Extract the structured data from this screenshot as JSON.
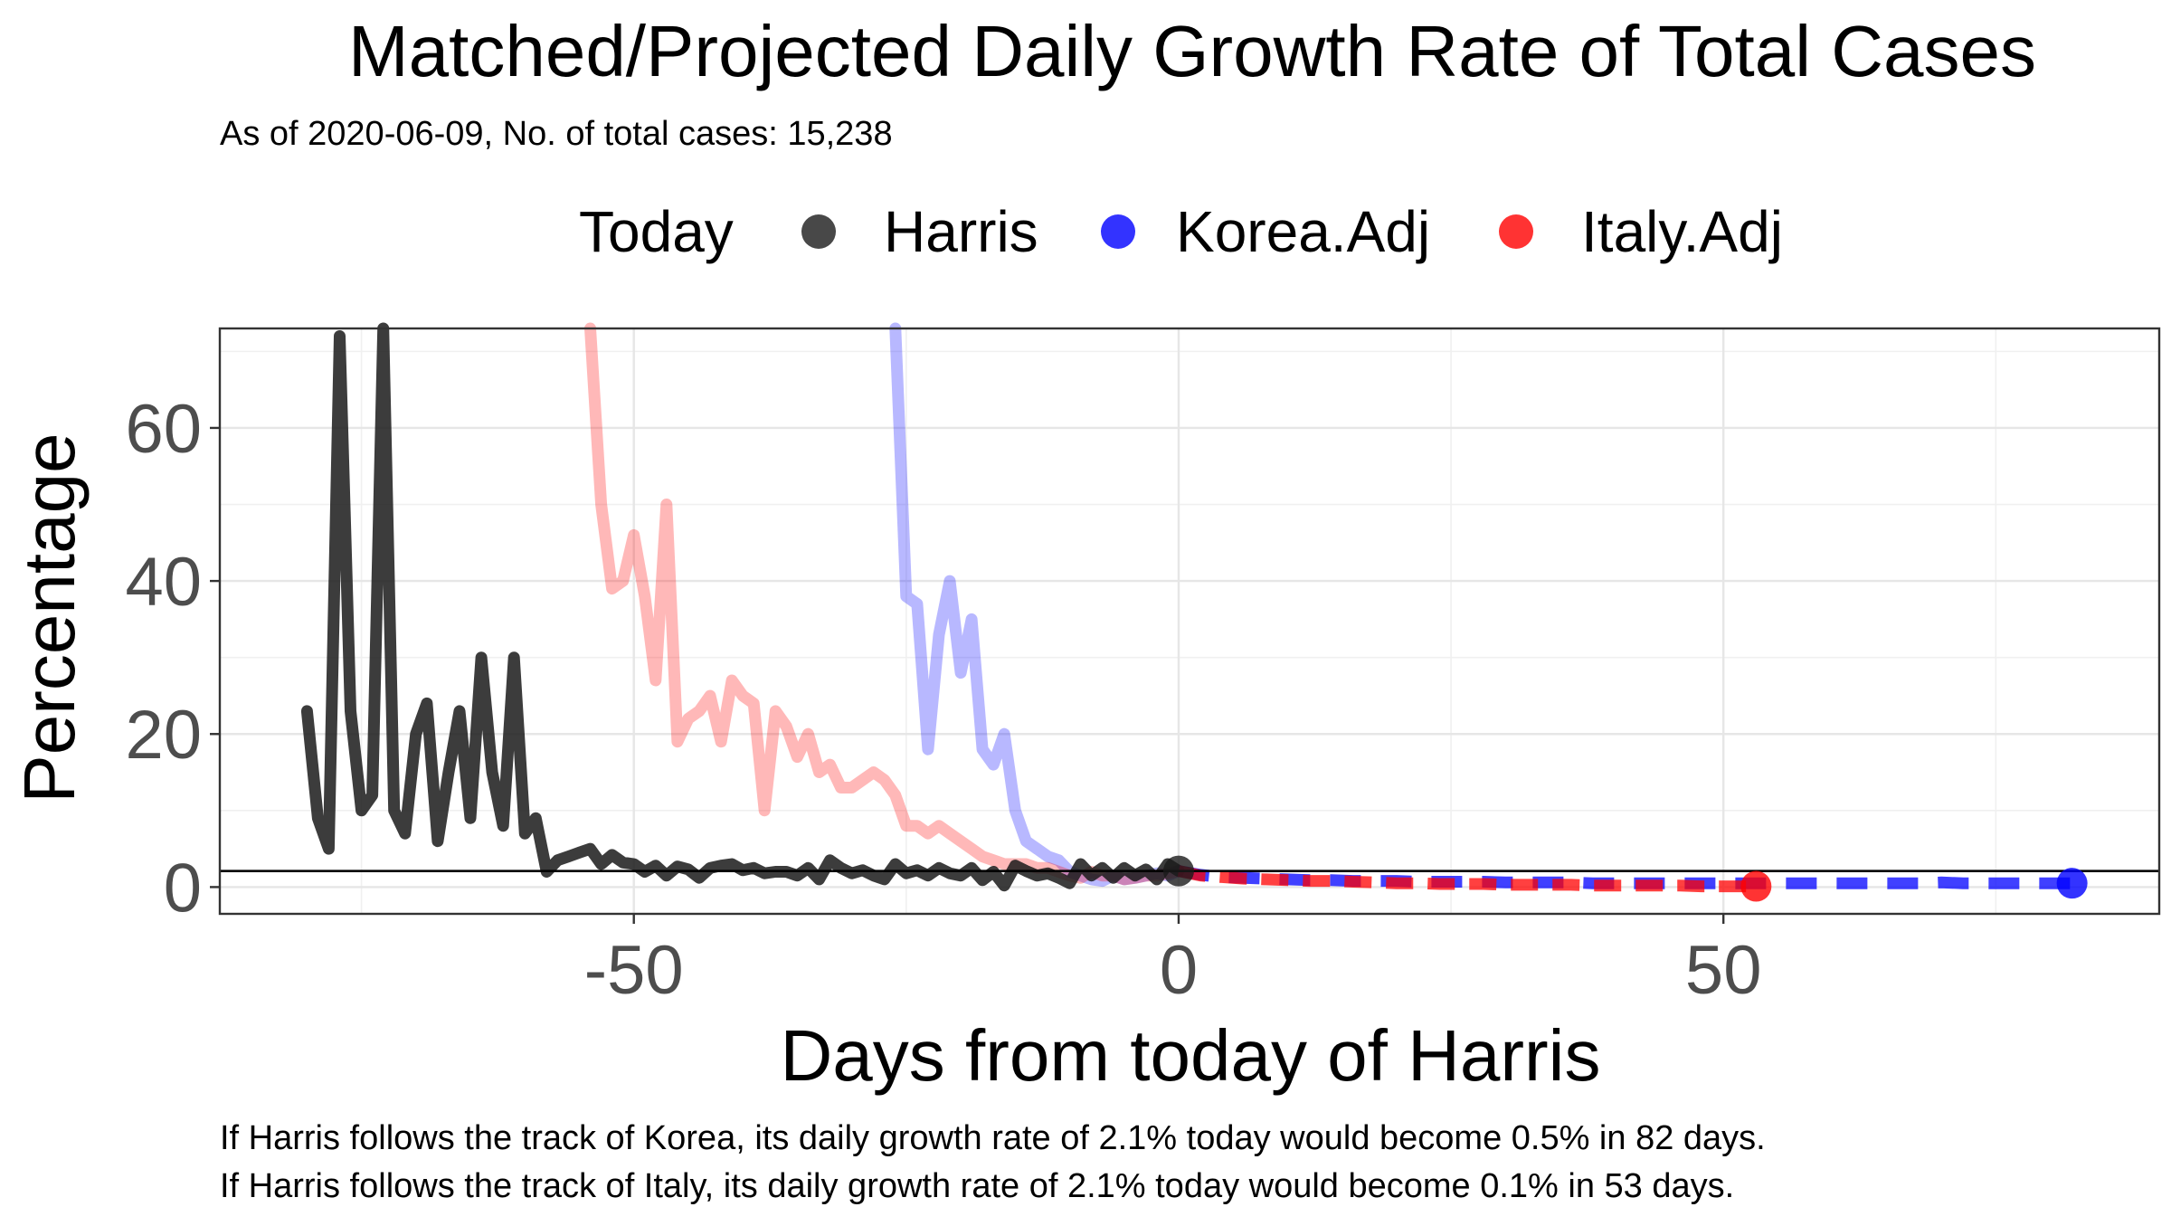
{
  "chart_data": {
    "type": "line",
    "title": "Matched/Projected Daily Growth Rate of Total Cases",
    "subtitle": "As of 2020-06-09, No. of total cases: 15,238",
    "xlabel": "Days from today of Harris",
    "ylabel": "Percentage",
    "xlim": [
      -88,
      90
    ],
    "ylim": [
      -3.5,
      73
    ],
    "x_ticks": [
      -50,
      0,
      50
    ],
    "x_tick_labels": [
      "-50",
      "0",
      "50"
    ],
    "y_ticks": [
      0,
      20,
      40,
      60
    ],
    "y_tick_labels": [
      "0",
      "20",
      "40",
      "60"
    ],
    "grid": true,
    "legend": {
      "position": "top",
      "title": "Today",
      "entries": [
        {
          "label": "Harris",
          "color": "#1a1a1a"
        },
        {
          "label": "Korea.Adj",
          "color": "#0000ff"
        },
        {
          "label": "Italy.Adj",
          "color": "#ff0000"
        }
      ]
    },
    "reference_line": {
      "y": 2.1,
      "color": "#000000"
    },
    "today_markers": [
      {
        "series": "Harris",
        "x": 0,
        "y": 2.1,
        "color": "#1a1a1a"
      },
      {
        "series": "Korea.Adj",
        "x": 82,
        "y": 0.5,
        "color": "#0000ff"
      },
      {
        "series": "Italy.Adj",
        "x": 53,
        "y": 0.1,
        "color": "#ff0000"
      }
    ],
    "series": [
      {
        "name": "Harris",
        "color": "#1a1a1a",
        "x": [
          -80,
          -79,
          -78,
          -77,
          -76,
          -75,
          -74,
          -73,
          -72,
          -71,
          -70,
          -69,
          -68,
          -67,
          -66,
          -65,
          -64,
          -63,
          -62,
          -61,
          -60,
          -59,
          -58,
          -57,
          -56,
          -55,
          -54,
          -53,
          -52,
          -51,
          -50,
          -49,
          -48,
          -47,
          -46,
          -45,
          -44,
          -43,
          -42,
          -41,
          -40,
          -39,
          -38,
          -37,
          -36,
          -35,
          -34,
          -33,
          -32,
          -31,
          -30,
          -29,
          -28,
          -27,
          -26,
          -25,
          -24,
          -23,
          -22,
          -21,
          -20,
          -19,
          -18,
          -17,
          -16,
          -15,
          -14,
          -13,
          -12,
          -11,
          -10,
          -9,
          -8,
          -7,
          -6,
          -5,
          -4,
          -3,
          -2,
          -1,
          0
        ],
        "y": [
          23,
          9,
          5,
          72,
          23,
          10,
          12,
          73,
          10,
          7,
          20,
          24,
          6,
          15,
          23,
          9,
          30,
          15,
          8,
          30,
          7,
          9,
          2,
          3.5,
          4,
          4.5,
          5,
          3,
          4.2,
          3.2,
          3,
          2,
          2.8,
          1.5,
          2.7,
          2.3,
          1.2,
          2.5,
          2.8,
          3,
          2.2,
          2.5,
          1.8,
          2,
          2,
          1.5,
          2.5,
          1,
          3.5,
          2.5,
          1.8,
          2.2,
          1.5,
          1,
          3,
          1.8,
          2.2,
          1.5,
          2.5,
          1.8,
          1.5,
          2.5,
          0.9,
          2,
          0.2,
          2.8,
          2.1,
          1.5,
          1.8,
          1.2,
          0.5,
          3,
          1.5,
          2.5,
          1.2,
          2.5,
          1.5,
          2.3,
          1,
          3,
          2.1
        ]
      },
      {
        "name": "Korea",
        "color": "#0000ff",
        "opacity": 0.28,
        "x": [
          -26,
          -25,
          -24,
          -23,
          -22,
          -21,
          -20,
          -19,
          -18,
          -17,
          -16,
          -15,
          -14,
          -13,
          -12,
          -11,
          -10,
          -9,
          -8,
          -7,
          -6,
          -5,
          -4,
          -3,
          -2,
          -1,
          0
        ],
        "y": [
          73,
          38,
          37,
          18,
          33,
          40,
          28,
          35,
          18,
          16,
          20,
          10,
          6,
          5,
          4,
          3.5,
          2,
          1.5,
          1,
          0.8,
          1.5,
          1,
          1.2,
          1.5,
          1.8,
          1.5,
          2.1
        ]
      },
      {
        "name": "Italy",
        "color": "#ff0000",
        "opacity": 0.28,
        "x": [
          -54,
          -53,
          -52,
          -51,
          -50,
          -49,
          -48,
          -47,
          -46,
          -45,
          -44,
          -43,
          -42,
          -41,
          -40,
          -39,
          -38,
          -37,
          -36,
          -35,
          -34,
          -33,
          -32,
          -31,
          -30,
          -29,
          -28,
          -27,
          -26,
          -25,
          -24,
          -23,
          -22,
          -21,
          -20,
          -19,
          -18,
          -17,
          -16,
          -15,
          -14,
          -13,
          -12,
          -11,
          -10,
          -9,
          -8,
          -7,
          -6,
          -5,
          -4,
          -3,
          -2,
          -1,
          0
        ],
        "y": [
          73,
          50,
          39,
          40,
          46,
          38,
          27,
          50,
          19,
          22,
          23,
          25,
          19,
          27,
          25,
          24,
          10,
          23,
          21,
          17,
          20,
          15,
          16,
          13,
          13,
          14,
          15,
          14,
          12,
          8,
          8,
          7,
          8,
          7,
          6,
          5,
          4,
          3.5,
          3,
          3,
          3,
          2.5,
          2.5,
          2,
          1.5,
          1.2,
          2,
          1.5,
          1.5,
          1,
          1.2,
          1.5,
          1.5,
          1.8,
          2.1
        ]
      },
      {
        "name": "Korea.Adj",
        "color": "#0000ff",
        "x": [
          0,
          2,
          4,
          6,
          8,
          10,
          12,
          14,
          16,
          18,
          20,
          22,
          24,
          26,
          28,
          30,
          32,
          34,
          36,
          38,
          40,
          42,
          44,
          46,
          48,
          50,
          52,
          54,
          56,
          58,
          60,
          62,
          64,
          66,
          68,
          70,
          72,
          74,
          76,
          78,
          80,
          82
        ],
        "y": [
          2.1,
          1.6,
          1.3,
          1.2,
          1.1,
          1,
          0.9,
          0.9,
          0.8,
          0.8,
          0.8,
          0.7,
          0.7,
          0.7,
          0.7,
          0.6,
          0.6,
          0.6,
          0.6,
          0.5,
          0.5,
          0.5,
          0.5,
          0.5,
          0.5,
          0.5,
          0.5,
          0.5,
          0.5,
          0.5,
          0.5,
          0.5,
          0.5,
          0.5,
          0.5,
          0.6,
          0.5,
          0.5,
          0.5,
          0.5,
          0.5,
          0.5
        ]
      },
      {
        "name": "Italy.Adj",
        "color": "#ff0000",
        "x": [
          0,
          2,
          4,
          6,
          8,
          10,
          12,
          14,
          16,
          18,
          20,
          22,
          24,
          26,
          28,
          30,
          32,
          34,
          36,
          38,
          40,
          42,
          44,
          46,
          48,
          50,
          52,
          53
        ],
        "y": [
          2.1,
          1.5,
          1.3,
          1.1,
          1,
          0.9,
          0.8,
          0.8,
          0.7,
          0.6,
          0.5,
          0.5,
          0.4,
          0.4,
          0.4,
          0.3,
          0.3,
          0.3,
          0.3,
          0.2,
          0.2,
          0.2,
          0.2,
          0.2,
          0.1,
          0.1,
          0.1,
          0.1
        ]
      }
    ],
    "annotations": [
      "If Harris follows the track of Korea, its daily growth rate of 2.1% today would become 0.5% in 82 days.",
      "If Harris follows the track of Italy, its daily growth rate of 2.1% today would become 0.1% in 53 days."
    ]
  }
}
